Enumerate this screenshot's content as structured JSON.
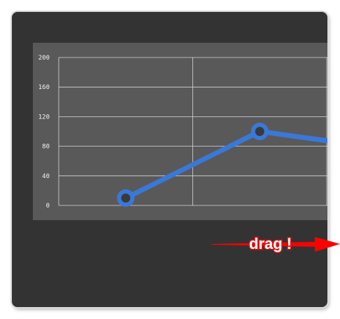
{
  "chart_data": {
    "type": "line",
    "categories": [
      "",
      "",
      ""
    ],
    "series": [
      {
        "values": [
          10,
          100,
          75
        ]
      }
    ],
    "yticks": [
      "0",
      "40",
      "80",
      "120",
      "160",
      "200"
    ],
    "ylim": [
      0,
      200
    ],
    "grid": true,
    "colors": {
      "line": "#3a78d8",
      "marker_fill": "#3a3a3a",
      "grid": "#d9d9d9",
      "plot_bg": "#595959"
    }
  },
  "annotation": {
    "text": "drag !",
    "arrow_color": "#ff0000"
  }
}
